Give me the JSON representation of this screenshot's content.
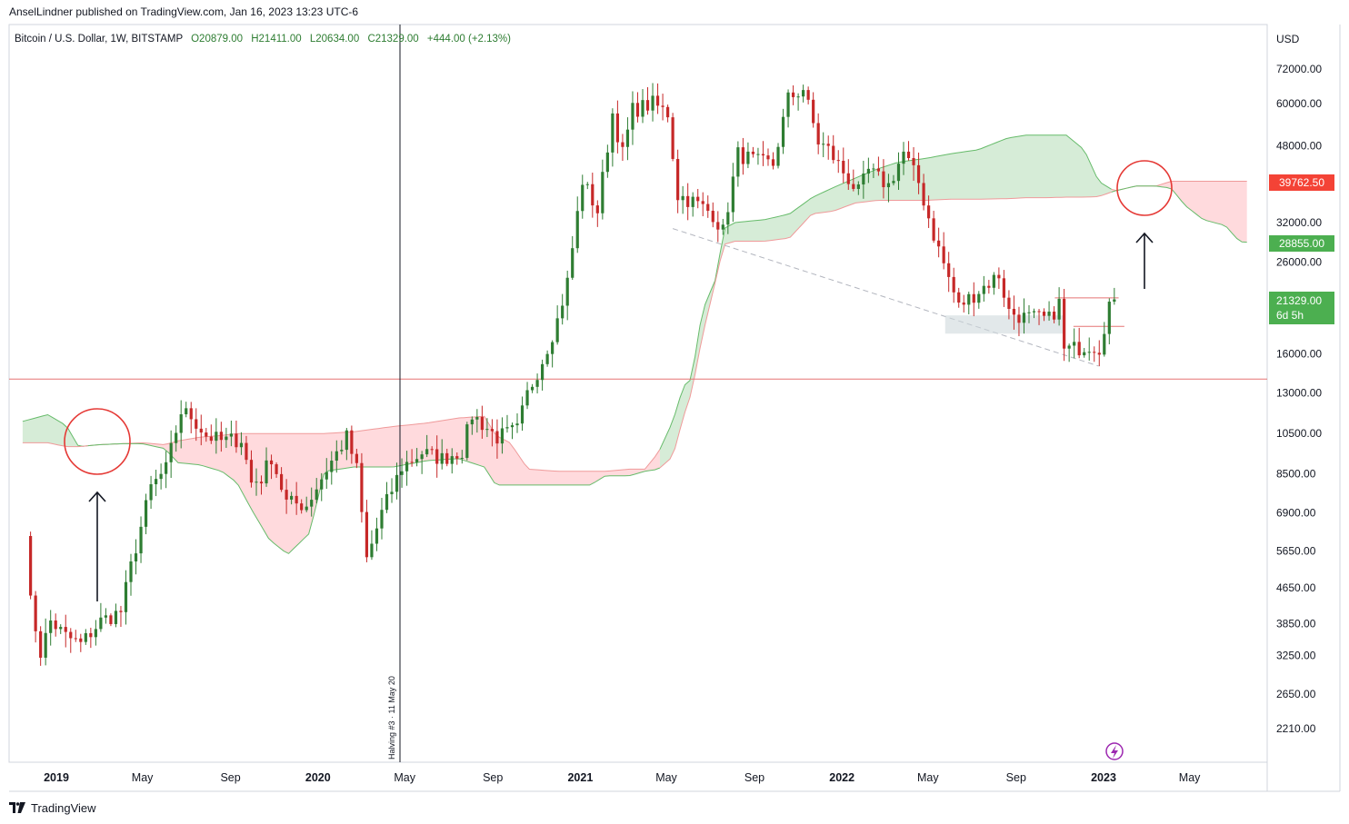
{
  "publisher_line": "AnselLindner published on TradingView.com, Jan 16, 2023 13:23 UTC-6",
  "legend": {
    "symbol": "Bitcoin / U.S. Dollar, 1W, BITSTAMP",
    "open": "O20879.00",
    "high": "H21411.00",
    "low": "L20634.00",
    "close": "C21329.00",
    "change": "+444.00 (+2.13%)"
  },
  "currency": "USD",
  "price_labels": {
    "cloud_top": "39762.50",
    "cloud_bottom": "28855.00",
    "last_price": "21329.00",
    "countdown": "6d 5h"
  },
  "halving_label": "Halving #3 · 11 May 20",
  "footer_brand": "TradingView",
  "colors": {
    "up": "#26a69a",
    "candle_up": "#2e7d32",
    "candle_down": "#c62828",
    "cloud_bull": "#c8e6c9",
    "cloud_bear": "#ffcdd2",
    "line_red": "#e57373",
    "label_red": "#f44336",
    "label_green": "#4caf50"
  },
  "chart_data": {
    "type": "candlestick",
    "scale": "log",
    "ylim": [
      1900,
      90000
    ],
    "x_range": [
      "2018-11-15",
      "2023-09-20"
    ],
    "y_ticks": [
      72000,
      60000,
      48000,
      32000,
      26000,
      16000,
      13000,
      10500,
      8500,
      6900,
      5650,
      4650,
      3850,
      3250,
      2650,
      2210
    ],
    "x_ticks": [
      {
        "label": "2019",
        "date": "2019-01-01",
        "bold": true
      },
      {
        "label": "May",
        "date": "2019-05-01",
        "bold": false
      },
      {
        "label": "Sep",
        "date": "2019-09-01",
        "bold": false
      },
      {
        "label": "2020",
        "date": "2020-01-01",
        "bold": true
      },
      {
        "label": "May",
        "date": "2020-05-01",
        "bold": false
      },
      {
        "label": "Sep",
        "date": "2020-09-01",
        "bold": false
      },
      {
        "label": "2021",
        "date": "2021-01-01",
        "bold": true
      },
      {
        "label": "May",
        "date": "2021-05-01",
        "bold": false
      },
      {
        "label": "Sep",
        "date": "2021-09-01",
        "bold": false
      },
      {
        "label": "2022",
        "date": "2022-01-01",
        "bold": true
      },
      {
        "label": "May",
        "date": "2022-05-01",
        "bold": false
      },
      {
        "label": "Sep",
        "date": "2022-09-01",
        "bold": false
      },
      {
        "label": "2023",
        "date": "2023-01-01",
        "bold": true
      },
      {
        "label": "May",
        "date": "2023-05-01",
        "bold": false
      }
    ],
    "price_path": [
      [
        "2018-11-19",
        6400
      ],
      [
        "2018-11-26",
        4300
      ],
      [
        "2018-12-10",
        3300
      ],
      [
        "2018-12-24",
        3900
      ],
      [
        "2019-01-14",
        3600
      ],
      [
        "2019-02-04",
        3450
      ],
      [
        "2019-03-04",
        3900
      ],
      [
        "2019-04-01",
        4100
      ],
      [
        "2019-04-15",
        5200
      ],
      [
        "2019-05-13",
        7900
      ],
      [
        "2019-06-03",
        8700
      ],
      [
        "2019-06-24",
        11800
      ],
      [
        "2019-07-08",
        11500
      ],
      [
        "2019-07-29",
        10400
      ],
      [
        "2019-08-19",
        10100
      ],
      [
        "2019-09-16",
        10200
      ],
      [
        "2019-09-30",
        8100
      ],
      [
        "2019-10-14",
        8300
      ],
      [
        "2019-10-28",
        9300
      ],
      [
        "2019-11-18",
        7300
      ],
      [
        "2019-12-16",
        7200
      ],
      [
        "2020-01-13",
        8700
      ],
      [
        "2020-02-10",
        10300
      ],
      [
        "2020-02-24",
        8700
      ],
      [
        "2020-03-09",
        5400
      ],
      [
        "2020-03-30",
        6900
      ],
      [
        "2020-04-27",
        8800
      ],
      [
        "2020-05-25",
        9500
      ],
      [
        "2020-06-22",
        9200
      ],
      [
        "2020-07-20",
        9600
      ],
      [
        "2020-08-03",
        11600
      ],
      [
        "2020-09-07",
        10300
      ],
      [
        "2020-10-05",
        10700
      ],
      [
        "2020-10-19",
        12900
      ],
      [
        "2020-11-09",
        15500
      ],
      [
        "2020-11-30",
        19100
      ],
      [
        "2020-12-14",
        23400
      ],
      [
        "2021-01-04",
        40000
      ],
      [
        "2021-01-25",
        34000
      ],
      [
        "2021-02-15",
        57000
      ],
      [
        "2021-03-01",
        46000
      ],
      [
        "2021-03-15",
        58000
      ],
      [
        "2021-04-12",
        60000
      ],
      [
        "2021-05-03",
        57000
      ],
      [
        "2021-05-17",
        37000
      ],
      [
        "2021-06-07",
        35800
      ],
      [
        "2021-07-05",
        33500
      ],
      [
        "2021-07-19",
        30500
      ],
      [
        "2021-08-09",
        46000
      ],
      [
        "2021-09-06",
        44000
      ],
      [
        "2021-09-27",
        43500
      ],
      [
        "2021-10-18",
        61500
      ],
      [
        "2021-11-08",
        65000
      ],
      [
        "2021-11-29",
        49000
      ],
      [
        "2021-12-13",
        47000
      ],
      [
        "2022-01-03",
        41800
      ],
      [
        "2022-01-24",
        37500
      ],
      [
        "2022-02-07",
        42000
      ],
      [
        "2022-03-07",
        38900
      ],
      [
        "2022-03-28",
        46300
      ],
      [
        "2022-04-18",
        39500
      ],
      [
        "2022-05-09",
        30000
      ],
      [
        "2022-06-13",
        20500
      ],
      [
        "2022-06-20",
        21000
      ],
      [
        "2022-07-25",
        23300
      ],
      [
        "2022-08-08",
        24300
      ],
      [
        "2022-08-22",
        20000
      ],
      [
        "2022-09-12",
        19400
      ],
      [
        "2022-10-17",
        19200
      ],
      [
        "2022-10-31",
        20900
      ],
      [
        "2022-11-07",
        16300
      ],
      [
        "2022-11-21",
        16450
      ],
      [
        "2022-12-12",
        16800
      ],
      [
        "2022-12-26",
        16550
      ],
      [
        "2023-01-09",
        20879
      ],
      [
        "2023-01-16",
        21329
      ]
    ],
    "cloud": [
      [
        "2018-11-15",
        11200,
        10000
      ],
      [
        "2018-12-20",
        11600,
        10000
      ],
      [
        "2019-01-15",
        10950,
        9800
      ],
      [
        "2019-02-01",
        9800,
        9800
      ],
      [
        "2019-03-01",
        9900,
        9900
      ],
      [
        "2019-04-01",
        9950,
        9950
      ],
      [
        "2019-05-01",
        10000,
        9950
      ],
      [
        "2019-06-01",
        9900,
        9700
      ],
      [
        "2019-06-20",
        10100,
        9000
      ],
      [
        "2019-07-20",
        10300,
        8900
      ],
      [
        "2019-08-20",
        10400,
        8600
      ],
      [
        "2019-09-10",
        10500,
        8100
      ],
      [
        "2019-10-01",
        10500,
        7000
      ],
      [
        "2019-10-25",
        10500,
        6000
      ],
      [
        "2019-11-20",
        10500,
        5550
      ],
      [
        "2019-12-20",
        10500,
        6200
      ],
      [
        "2020-01-10",
        10500,
        8600
      ],
      [
        "2020-02-20",
        10600,
        8800
      ],
      [
        "2020-04-15",
        10900,
        8800
      ],
      [
        "2020-06-01",
        11100,
        9100
      ],
      [
        "2020-07-15",
        11400,
        9200
      ],
      [
        "2020-08-20",
        11500,
        8800
      ],
      [
        "2020-09-05",
        10400,
        8000
      ],
      [
        "2020-09-25",
        10000,
        8000
      ],
      [
        "2020-10-20",
        8700,
        8000
      ],
      [
        "2020-12-01",
        8600,
        8000
      ],
      [
        "2021-01-15",
        8600,
        8000
      ],
      [
        "2021-02-05",
        8600,
        8400
      ],
      [
        "2021-03-10",
        8700,
        8400
      ],
      [
        "2021-04-01",
        8700,
        8600
      ],
      [
        "2021-04-20",
        9500,
        8700
      ],
      [
        "2021-05-10",
        11200,
        9300
      ],
      [
        "2021-05-25",
        13500,
        11500
      ],
      [
        "2021-06-05",
        14000,
        13000
      ],
      [
        "2021-06-20",
        20000,
        17500
      ],
      [
        "2021-07-10",
        24000,
        24000
      ],
      [
        "2021-07-20",
        31000,
        28500
      ],
      [
        "2021-08-05",
        32000,
        29000
      ],
      [
        "2021-09-15",
        32500,
        29000
      ],
      [
        "2021-10-20",
        33500,
        29500
      ],
      [
        "2021-11-20",
        36500,
        33500
      ],
      [
        "2021-12-20",
        38500,
        34000
      ],
      [
        "2022-01-20",
        40500,
        35500
      ],
      [
        "2022-02-20",
        42500,
        36000
      ],
      [
        "2022-03-20",
        44000,
        36000
      ],
      [
        "2022-05-01",
        45000,
        36000
      ],
      [
        "2022-06-01",
        46000,
        36200
      ],
      [
        "2022-07-10",
        47000,
        36200
      ],
      [
        "2022-08-20",
        50000,
        36300
      ],
      [
        "2022-09-15",
        50800,
        36500
      ],
      [
        "2022-10-15",
        50800,
        36500
      ],
      [
        "2022-11-10",
        50800,
        36600
      ],
      [
        "2022-12-05",
        47000,
        36600
      ],
      [
        "2022-12-25",
        39800,
        36700
      ],
      [
        "2023-01-16",
        37800,
        37800
      ],
      [
        "2023-02-15",
        38800,
        38800
      ],
      [
        "2023-03-15",
        38800,
        38800
      ],
      [
        "2023-04-05",
        39800,
        38400
      ],
      [
        "2023-04-25",
        39800,
        35000
      ],
      [
        "2023-05-20",
        39800,
        32500
      ],
      [
        "2023-06-20",
        39800,
        31500
      ],
      [
        "2023-07-10",
        39800,
        28900
      ],
      [
        "2023-07-20",
        39800,
        28855
      ]
    ]
  }
}
